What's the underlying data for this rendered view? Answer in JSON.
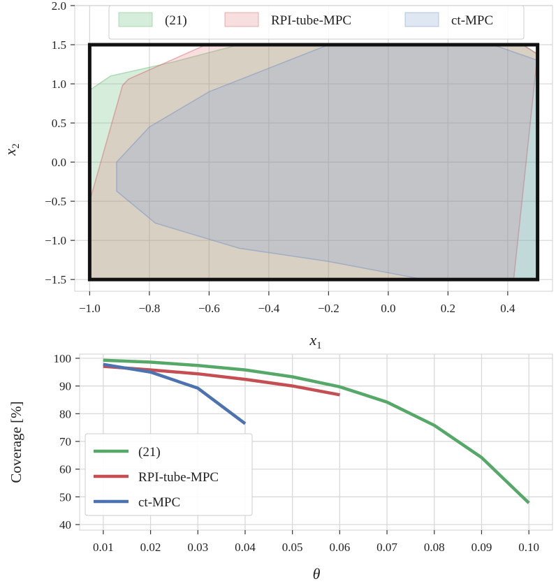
{
  "chart_data": [
    {
      "type": "area",
      "xlabel": "x",
      "xlabel_sub": "1",
      "ylabel": "x",
      "ylabel_sub": "2",
      "xlim": [
        -1.05,
        0.55
      ],
      "ylim": [
        -1.65,
        2.0
      ],
      "xticks": [
        -1.0,
        -0.8,
        -0.6,
        -0.4,
        -0.2,
        0.0,
        0.2,
        0.4
      ],
      "xtick_labels": [
        "−1.0",
        "−0.8",
        "−0.6",
        "−0.4",
        "−0.2",
        "0.0",
        "0.2",
        "0.4"
      ],
      "yticks": [
        -1.5,
        -1.0,
        -0.5,
        0.0,
        0.5,
        1.0,
        1.5,
        2.0
      ],
      "ytick_labels": [
        "−1.5",
        "−1.0",
        "−0.5",
        "0.0",
        "0.5",
        "1.0",
        "1.5",
        "2.0"
      ],
      "grid": true,
      "legend": "top-center",
      "constraint_box": {
        "x": [
          -1.0,
          0.5
        ],
        "y": [
          -1.5,
          1.5
        ]
      },
      "series": [
        {
          "name": "(21)",
          "fill": "#5fb86f",
          "edge": "#5fb86f",
          "polygon": [
            [
              -1.0,
              0.92
            ],
            [
              -0.93,
              1.1
            ],
            [
              -0.72,
              1.28
            ],
            [
              -0.5,
              1.5
            ],
            [
              0.45,
              1.5
            ],
            [
              0.5,
              1.38
            ],
            [
              0.5,
              -1.5
            ],
            [
              -1.0,
              -1.5
            ]
          ]
        },
        {
          "name": "RPI-tube-MPC",
          "fill": "#e07b7f",
          "edge": "#d25a60",
          "polygon": [
            [
              -0.89,
              0.98
            ],
            [
              -0.87,
              1.06
            ],
            [
              -0.61,
              1.5
            ],
            [
              0.45,
              1.5
            ],
            [
              0.5,
              1.38
            ],
            [
              0.42,
              -1.5
            ],
            [
              -1.0,
              -1.5
            ],
            [
              -1.0,
              -0.5
            ]
          ]
        },
        {
          "name": "ct-MPC",
          "fill": "#7f9fcf",
          "edge": "#6a8cc4",
          "polygon": [
            [
              -0.91,
              0.0
            ],
            [
              -0.91,
              -0.37
            ],
            [
              -0.78,
              -0.78
            ],
            [
              -0.5,
              -1.1
            ],
            [
              -0.2,
              -1.27
            ],
            [
              0.12,
              -1.5
            ],
            [
              0.5,
              -1.5
            ],
            [
              0.5,
              1.3
            ],
            [
              0.35,
              1.5
            ],
            [
              -0.2,
              1.5
            ],
            [
              -0.6,
              0.9
            ],
            [
              -0.8,
              0.45
            ],
            [
              -0.91,
              0.0
            ]
          ]
        }
      ]
    },
    {
      "type": "line",
      "xlabel": "θ",
      "ylabel": "Coverage [%]",
      "xlim": [
        0.005,
        0.105
      ],
      "ylim": [
        38,
        101.5
      ],
      "xticks": [
        0.01,
        0.02,
        0.03,
        0.04,
        0.05,
        0.06,
        0.07,
        0.08,
        0.09,
        0.1
      ],
      "xtick_labels": [
        "0.01",
        "0.02",
        "0.03",
        "0.04",
        "0.05",
        "0.06",
        "0.07",
        "0.08",
        "0.09",
        "0.10"
      ],
      "yticks": [
        40,
        50,
        60,
        70,
        80,
        90,
        100
      ],
      "ytick_labels": [
        "40",
        "50",
        "60",
        "70",
        "80",
        "90",
        "100"
      ],
      "grid": true,
      "legend": "lower-left",
      "series": [
        {
          "name": "(21)",
          "color": "#55a868",
          "x": [
            0.01,
            0.02,
            0.03,
            0.04,
            0.05,
            0.06,
            0.07,
            0.08,
            0.09,
            0.1
          ],
          "y": [
            99.3,
            98.6,
            97.4,
            95.8,
            93.3,
            89.7,
            84.2,
            75.8,
            64.2,
            47.8
          ]
        },
        {
          "name": "RPI-tube-MPC",
          "color": "#c44e52",
          "x": [
            0.01,
            0.02,
            0.03,
            0.04,
            0.05,
            0.06
          ],
          "y": [
            97.1,
            95.8,
            94.4,
            92.4,
            90.0,
            86.8
          ]
        },
        {
          "name": "ct-MPC",
          "color": "#4c72b0",
          "x": [
            0.01,
            0.02,
            0.03,
            0.04
          ],
          "y": [
            97.8,
            95.0,
            89.2,
            76.4
          ]
        }
      ]
    }
  ]
}
